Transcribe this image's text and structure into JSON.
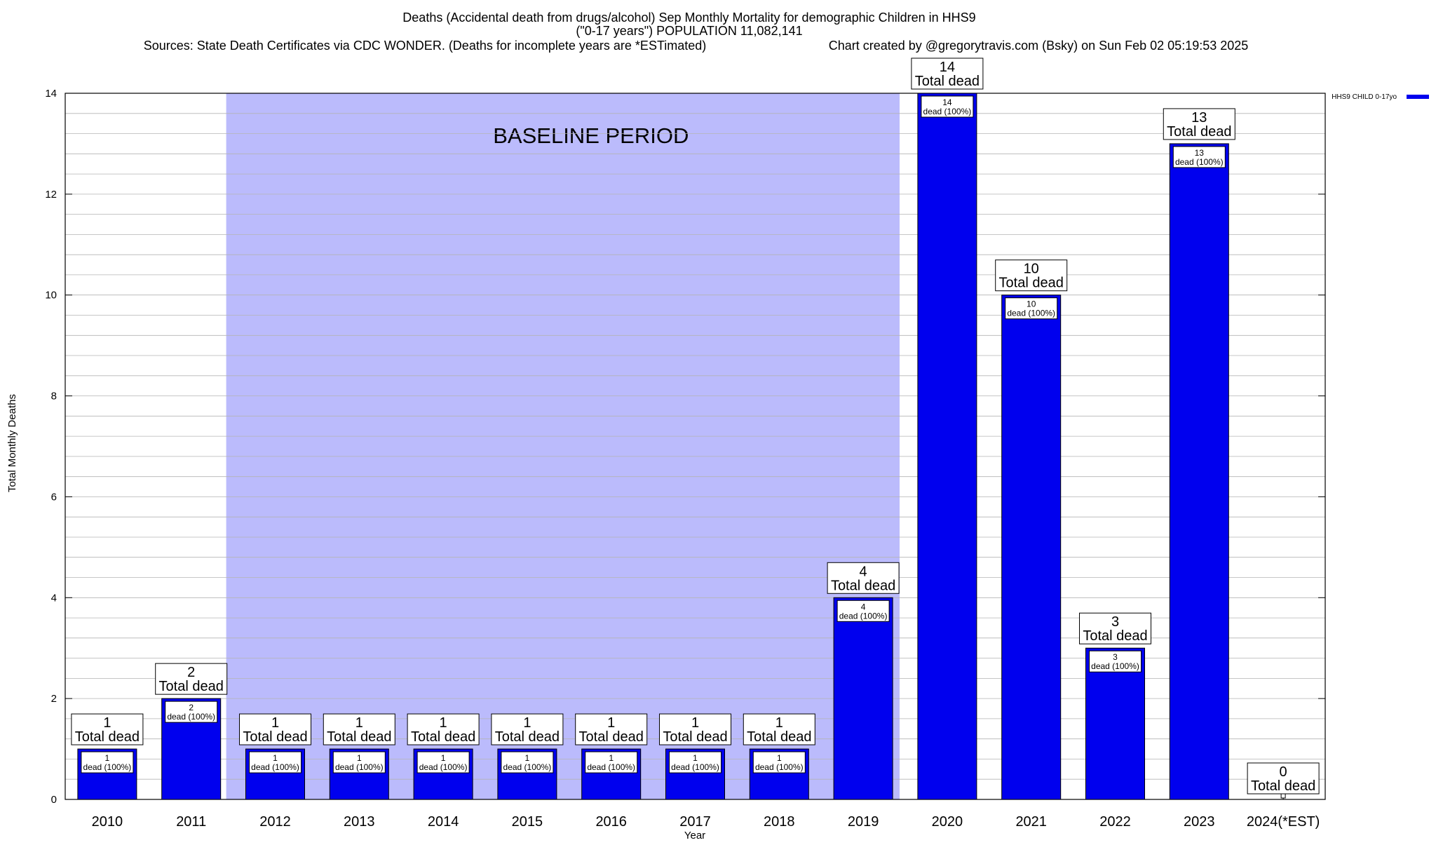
{
  "chart_data": {
    "type": "bar",
    "title": "Deaths (Accidental death from drugs/alcohol) Sep Monthly Mortality for demographic Children in HHS9",
    "subtitle": "(\"0-17 years\") POPULATION 11,082,141",
    "sources": "Sources: State Death Certificates via CDC WONDER. (Deaths for incomplete years are *ESTimated)",
    "credit": "Chart created by @gregorytravis.com (Bsky) on Sun Feb 02 05:19:53 2025",
    "xlabel": "Year",
    "ylabel": "Total Monthly Deaths",
    "ylim": [
      0,
      14
    ],
    "yticks": [
      0,
      2,
      4,
      6,
      8,
      10,
      12,
      14
    ],
    "grid": true,
    "legend_position": "top-right",
    "baseline_label": "BASELINE PERIOD",
    "baseline_range": [
      "2012",
      "2019"
    ],
    "categories": [
      "2010",
      "2011",
      "2012",
      "2013",
      "2014",
      "2015",
      "2016",
      "2017",
      "2018",
      "2019",
      "2020",
      "2021",
      "2022",
      "2023",
      "2024(*EST)"
    ],
    "series": [
      {
        "name": "HHS9 CHILD 0-17yo",
        "color": "#0000ee",
        "values": [
          1,
          2,
          1,
          1,
          1,
          1,
          1,
          1,
          1,
          4,
          14,
          10,
          3,
          13,
          0
        ]
      }
    ],
    "total_label": "Total dead",
    "inner_label": "dead (100%)",
    "colors": {
      "bar": "#0000ee",
      "baseline": "#bbbbfc",
      "grid": "#b4b4b4"
    }
  }
}
